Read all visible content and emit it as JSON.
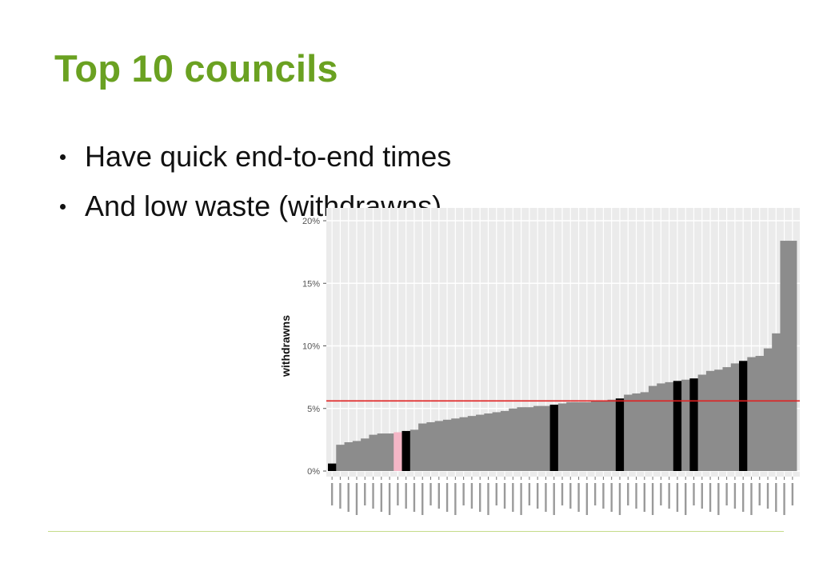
{
  "slide": {
    "title": "Top 10 councils",
    "bullets": [
      "Have quick end-to-end times",
      "And low waste (withdrawns)"
    ]
  },
  "colors": {
    "title": "#6aa121",
    "bar_default": "#8c8c8c",
    "bar_top10": "#000000",
    "bar_pink": "#f4b6c6",
    "reference_line": "#e02020",
    "panel": "#ebebeb",
    "footer_rule": "#c5dc8a"
  },
  "chart_data": {
    "type": "bar",
    "ylabel": "withdrawns",
    "xlabel": "",
    "ylim": [
      0,
      20
    ],
    "yticks": [
      "0%",
      "5%",
      "10%",
      "15%",
      "20%"
    ],
    "ytick_values": [
      0,
      5,
      10,
      15,
      20
    ],
    "reference_line": 5.6,
    "grid": true,
    "bar_count": 57,
    "values": [
      0.6,
      2.1,
      2.3,
      2.4,
      2.6,
      2.9,
      3.0,
      3.0,
      3.1,
      3.2,
      3.3,
      3.8,
      3.9,
      4.0,
      4.1,
      4.2,
      4.3,
      4.4,
      4.5,
      4.6,
      4.7,
      4.8,
      5.0,
      5.1,
      5.1,
      5.2,
      5.2,
      5.3,
      5.4,
      5.5,
      5.5,
      5.5,
      5.6,
      5.6,
      5.7,
      5.8,
      6.1,
      6.2,
      6.3,
      6.8,
      7.0,
      7.1,
      7.2,
      7.3,
      7.4,
      7.7,
      8.0,
      8.1,
      8.3,
      8.6,
      8.8,
      9.1,
      9.2,
      9.8,
      11.0,
      18.4,
      18.4
    ],
    "highlight": {
      "top10": [
        0,
        9,
        27,
        35,
        42,
        44,
        50
      ],
      "pink": [
        8
      ]
    }
  }
}
